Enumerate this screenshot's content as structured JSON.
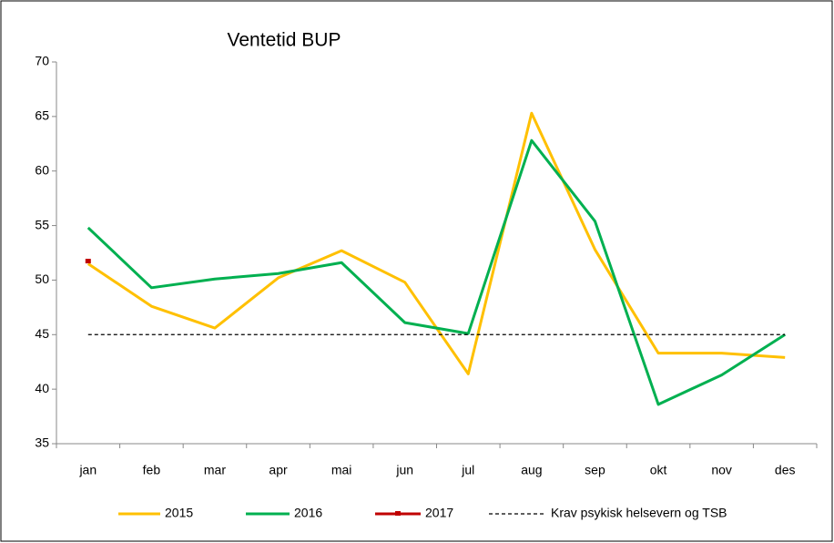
{
  "chart_data": {
    "type": "line",
    "title": "Ventetid BUP",
    "categories": [
      "jan",
      "feb",
      "mar",
      "apr",
      "mai",
      "jun",
      "jul",
      "aug",
      "sep",
      "okt",
      "nov",
      "des"
    ],
    "series": [
      {
        "name": "2015",
        "color": "#ffc000",
        "values": [
          51.5,
          47.6,
          45.6,
          50.2,
          52.7,
          49.8,
          41.4,
          65.3,
          52.8,
          43.3,
          43.3,
          42.9
        ]
      },
      {
        "name": "2016",
        "color": "#00b050",
        "values": [
          54.8,
          49.3,
          50.1,
          50.6,
          51.6,
          46.1,
          45.1,
          62.8,
          55.4,
          38.6,
          41.3,
          45.0
        ]
      },
      {
        "name": "2017",
        "color": "#c00000",
        "marker": "square",
        "values": [
          51.7,
          null,
          null,
          null,
          null,
          null,
          null,
          null,
          null,
          null,
          null,
          null
        ]
      },
      {
        "name": "Krav psykisk helsevern og TSB",
        "color": "#000000",
        "style": "dashed",
        "values": [
          45,
          45,
          45,
          45,
          45,
          45,
          45,
          45,
          45,
          45,
          45,
          45
        ]
      }
    ],
    "ylim": [
      35,
      70
    ],
    "yticks": [
      35,
      40,
      45,
      50,
      55,
      60,
      65,
      70
    ],
    "grid": false,
    "legend": "bottom"
  }
}
